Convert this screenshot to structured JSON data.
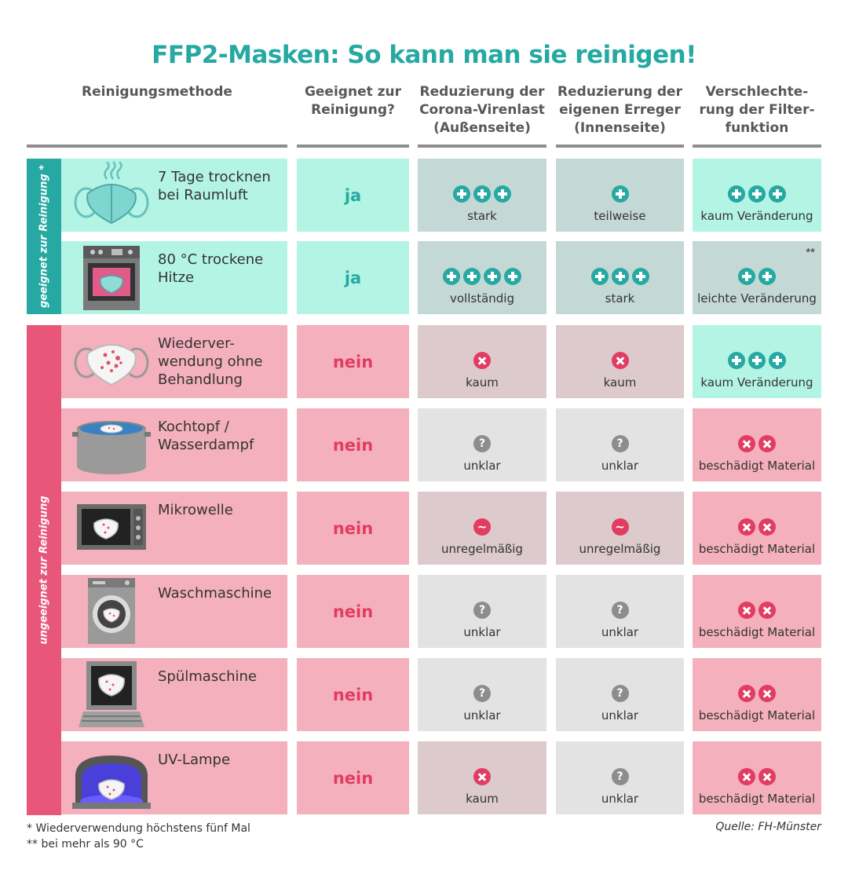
{
  "title": "FFP2-Masken: So kann man sie reinigen!",
  "headers": {
    "method": "Reinigungsmethode",
    "suitable": "Geeignet zur\nReinigung?",
    "outer": "Reduzierung der\nCorona-Virenlast\n(Außenseite)",
    "inner": "Reduzierung der\neigenen Erreger\n(Innenseite)",
    "filter": "Verschlechte-\nrung der Filter-\nfunktion"
  },
  "groups": {
    "suitable": "geeignet zur Reinigung *",
    "unsuitable": "ungeeignet zur Reinigung"
  },
  "colors": {
    "teal": "#26a9a2",
    "red": "#e23c62",
    "light_teal": "#b3f4e4",
    "light_pink": "#f4b0bc",
    "grey": "#e3e3e3"
  },
  "rows": [
    {
      "icon": "drying-mask-icon",
      "method": "7 Tage trocknen\nbei Raumluft",
      "suitable": "ja",
      "outer": {
        "symbol": "plus",
        "count": 3,
        "label": "stark"
      },
      "inner": {
        "symbol": "plus",
        "count": 1,
        "label": "teilweise"
      },
      "filter": {
        "symbol": "plus",
        "count": 3,
        "label": "kaum Veränderung"
      }
    },
    {
      "icon": "oven-icon",
      "method": "80 °C trockene\nHitze",
      "suitable": "ja",
      "outer": {
        "symbol": "plus",
        "count": 4,
        "label": "vollständig"
      },
      "inner": {
        "symbol": "plus",
        "count": 3,
        "label": "stark"
      },
      "filter": {
        "symbol": "plus",
        "count": 2,
        "label": "leichte Veränderung",
        "note": "**"
      }
    },
    {
      "icon": "used-mask-icon",
      "method": "Wiederver-\nwendung ohne\nBehandlung",
      "suitable": "nein",
      "outer": {
        "symbol": "cross",
        "count": 1,
        "label": "kaum"
      },
      "inner": {
        "symbol": "cross",
        "count": 1,
        "label": "kaum"
      },
      "filter": {
        "symbol": "plus",
        "count": 3,
        "label": "kaum Veränderung"
      }
    },
    {
      "icon": "cooking-pot-icon",
      "method": "Kochtopf /\nWasserdampf",
      "suitable": "nein",
      "outer": {
        "symbol": "question",
        "count": 1,
        "label": "unklar"
      },
      "inner": {
        "symbol": "question",
        "count": 1,
        "label": "unklar"
      },
      "filter": {
        "symbol": "cross",
        "count": 2,
        "label": "beschädigt Material"
      }
    },
    {
      "icon": "microwave-icon",
      "method": "Mikrowelle",
      "suitable": "nein",
      "outer": {
        "symbol": "wave",
        "count": 1,
        "label": "unregelmäßig"
      },
      "inner": {
        "symbol": "wave",
        "count": 1,
        "label": "unregelmäßig"
      },
      "filter": {
        "symbol": "cross",
        "count": 2,
        "label": "beschädigt Material"
      }
    },
    {
      "icon": "washing-machine-icon",
      "method": "Waschmaschine",
      "suitable": "nein",
      "outer": {
        "symbol": "question",
        "count": 1,
        "label": "unklar"
      },
      "inner": {
        "symbol": "question",
        "count": 1,
        "label": "unklar"
      },
      "filter": {
        "symbol": "cross",
        "count": 2,
        "label": "beschädigt Material"
      }
    },
    {
      "icon": "dishwasher-icon",
      "method": "Spülmaschine",
      "suitable": "nein",
      "outer": {
        "symbol": "question",
        "count": 1,
        "label": "unklar"
      },
      "inner": {
        "symbol": "question",
        "count": 1,
        "label": "unklar"
      },
      "filter": {
        "symbol": "cross",
        "count": 2,
        "label": "beschädigt Material"
      }
    },
    {
      "icon": "uv-lamp-icon",
      "method": "UV-Lampe",
      "suitable": "nein",
      "outer": {
        "symbol": "cross",
        "count": 1,
        "label": "kaum"
      },
      "inner": {
        "symbol": "question",
        "count": 1,
        "label": "unklar"
      },
      "filter": {
        "symbol": "cross",
        "count": 2,
        "label": "beschädigt Material"
      }
    }
  ],
  "footnotes": "* Wiederverwendung höchstens fünf Mal\n** bei mehr als 90 °C",
  "source": "Quelle: FH-Münster"
}
